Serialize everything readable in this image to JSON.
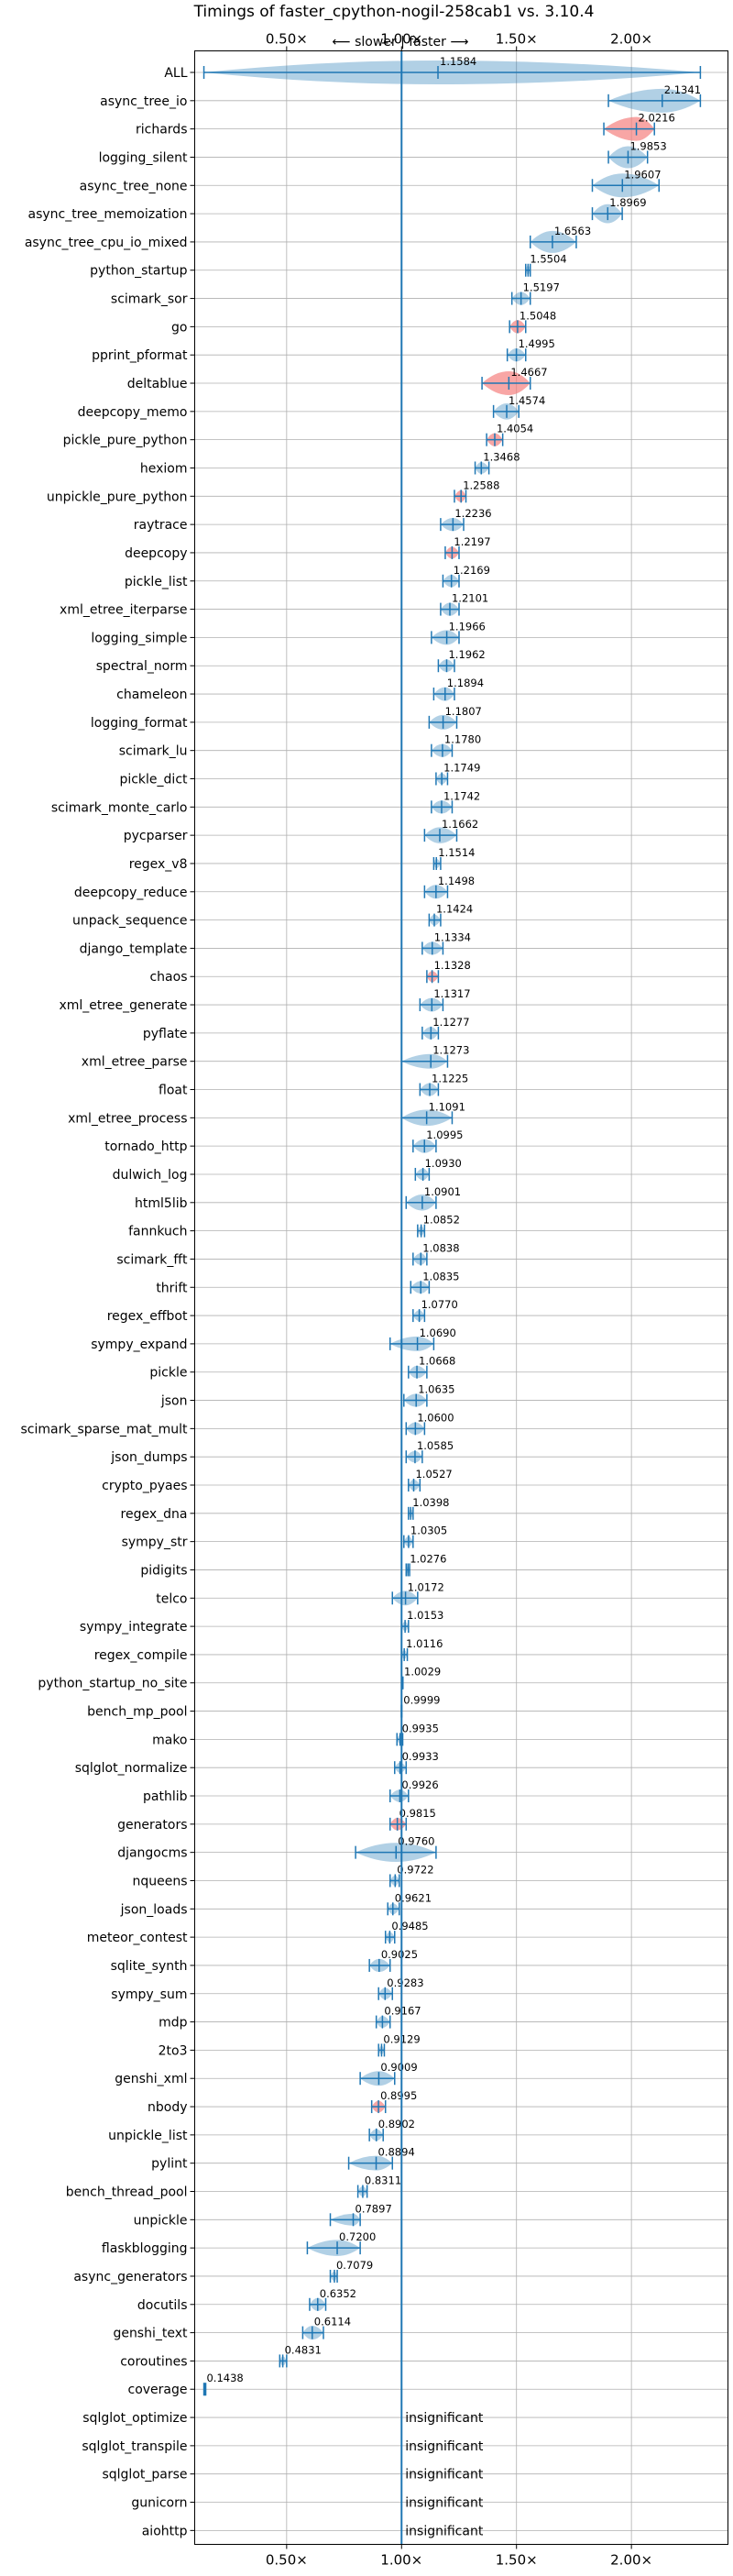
{
  "chart_data": {
    "type": "violin",
    "title": "Timings of faster_cpython-nogil-258cab1 vs. 3.10.4",
    "direction_label": "⟵ slower | faster ⟶",
    "xlim": [
      0.1,
      2.42
    ],
    "ref_line": 1.0,
    "x_ticks": [
      0.5,
      1.0,
      1.5,
      2.0
    ],
    "x_tick_labels": [
      "0.50×",
      "1.00×",
      "1.50×",
      "2.00×"
    ],
    "grid": true,
    "colors": {
      "normal": "#1f77b4",
      "flagged": "#d62728"
    },
    "insignificant_text": "insignificant",
    "benchmarks": [
      {
        "name": "ALL",
        "value": 1.1584,
        "label": "1.1584",
        "min": 0.14,
        "max": 2.3,
        "width": 0.18,
        "flag": false
      },
      {
        "name": "async_tree_io",
        "value": 2.1341,
        "label": "2.1341",
        "min": 1.9,
        "max": 2.3,
        "width": 0.2,
        "flag": false
      },
      {
        "name": "richards",
        "value": 2.0216,
        "label": "2.0216",
        "min": 1.88,
        "max": 2.1,
        "width": 0.12,
        "flag": true
      },
      {
        "name": "logging_silent",
        "value": 1.9853,
        "label": "1.9853",
        "min": 1.9,
        "max": 2.07,
        "width": 0.1,
        "flag": false
      },
      {
        "name": "async_tree_none",
        "value": 1.9607,
        "label": "1.9607",
        "min": 1.83,
        "max": 2.12,
        "width": 0.14,
        "flag": false
      },
      {
        "name": "async_tree_memoization",
        "value": 1.8969,
        "label": "1.8969",
        "min": 1.83,
        "max": 1.96,
        "width": 0.08,
        "flag": false
      },
      {
        "name": "async_tree_cpu_io_mixed",
        "value": 1.6563,
        "label": "1.6563",
        "min": 1.56,
        "max": 1.76,
        "width": 0.1,
        "flag": false
      },
      {
        "name": "python_startup",
        "value": 1.5504,
        "label": "1.5504",
        "min": 1.54,
        "max": 1.56,
        "width": 0.015,
        "flag": false
      },
      {
        "name": "scimark_sor",
        "value": 1.5197,
        "label": "1.5197",
        "min": 1.48,
        "max": 1.56,
        "width": 0.04,
        "flag": false
      },
      {
        "name": "go",
        "value": 1.5048,
        "label": "1.5048",
        "min": 1.47,
        "max": 1.54,
        "width": 0.04,
        "flag": true
      },
      {
        "name": "pprint_pformat",
        "value": 1.4995,
        "label": "1.4995",
        "min": 1.46,
        "max": 1.54,
        "width": 0.04,
        "flag": false
      },
      {
        "name": "deltablue",
        "value": 1.4667,
        "label": "1.4667",
        "min": 1.35,
        "max": 1.56,
        "width": 0.12,
        "flag": true
      },
      {
        "name": "deepcopy_memo",
        "value": 1.4574,
        "label": "1.4574",
        "min": 1.4,
        "max": 1.51,
        "width": 0.06,
        "flag": false
      },
      {
        "name": "pickle_pure_python",
        "value": 1.4054,
        "label": "1.4054",
        "min": 1.37,
        "max": 1.44,
        "width": 0.04,
        "flag": true
      },
      {
        "name": "hexiom",
        "value": 1.3468,
        "label": "1.3468",
        "min": 1.32,
        "max": 1.38,
        "width": 0.03,
        "flag": false
      },
      {
        "name": "unpickle_pure_python",
        "value": 1.2588,
        "label": "1.2588",
        "min": 1.23,
        "max": 1.28,
        "width": 0.03,
        "flag": true
      },
      {
        "name": "raytrace",
        "value": 1.2236,
        "label": "1.2236",
        "min": 1.17,
        "max": 1.27,
        "width": 0.04,
        "flag": false
      },
      {
        "name": "deepcopy",
        "value": 1.2197,
        "label": "1.2197",
        "min": 1.19,
        "max": 1.25,
        "width": 0.03,
        "flag": true
      },
      {
        "name": "pickle_list",
        "value": 1.2169,
        "label": "1.2169",
        "min": 1.18,
        "max": 1.25,
        "width": 0.035,
        "flag": false
      },
      {
        "name": "xml_etree_iterparse",
        "value": 1.2101,
        "label": "1.2101",
        "min": 1.17,
        "max": 1.25,
        "width": 0.04,
        "flag": false
      },
      {
        "name": "logging_simple",
        "value": 1.1966,
        "label": "1.1966",
        "min": 1.13,
        "max": 1.25,
        "width": 0.05,
        "flag": false
      },
      {
        "name": "spectral_norm",
        "value": 1.1962,
        "label": "1.1962",
        "min": 1.16,
        "max": 1.23,
        "width": 0.035,
        "flag": false
      },
      {
        "name": "chameleon",
        "value": 1.1894,
        "label": "1.1894",
        "min": 1.14,
        "max": 1.23,
        "width": 0.045,
        "flag": false
      },
      {
        "name": "logging_format",
        "value": 1.1807,
        "label": "1.1807",
        "min": 1.12,
        "max": 1.24,
        "width": 0.05,
        "flag": false
      },
      {
        "name": "scimark_lu",
        "value": 1.178,
        "label": "1.1780",
        "min": 1.13,
        "max": 1.22,
        "width": 0.04,
        "flag": false
      },
      {
        "name": "pickle_dict",
        "value": 1.1749,
        "label": "1.1749",
        "min": 1.15,
        "max": 1.2,
        "width": 0.025,
        "flag": false
      },
      {
        "name": "scimark_monte_carlo",
        "value": 1.1742,
        "label": "1.1742",
        "min": 1.13,
        "max": 1.22,
        "width": 0.04,
        "flag": false
      },
      {
        "name": "pycparser",
        "value": 1.1662,
        "label": "1.1662",
        "min": 1.1,
        "max": 1.24,
        "width": 0.06,
        "flag": false
      },
      {
        "name": "regex_v8",
        "value": 1.1514,
        "label": "1.1514",
        "min": 1.14,
        "max": 1.17,
        "width": 0.015,
        "flag": false
      },
      {
        "name": "deepcopy_reduce",
        "value": 1.1498,
        "label": "1.1498",
        "min": 1.1,
        "max": 1.2,
        "width": 0.045,
        "flag": false
      },
      {
        "name": "unpack_sequence",
        "value": 1.1424,
        "label": "1.1424",
        "min": 1.12,
        "max": 1.17,
        "width": 0.025,
        "flag": false
      },
      {
        "name": "django_template",
        "value": 1.1334,
        "label": "1.1334",
        "min": 1.09,
        "max": 1.18,
        "width": 0.04,
        "flag": false
      },
      {
        "name": "chaos",
        "value": 1.1328,
        "label": "1.1328",
        "min": 1.11,
        "max": 1.16,
        "width": 0.025,
        "flag": true
      },
      {
        "name": "xml_etree_generate",
        "value": 1.1317,
        "label": "1.1317",
        "min": 1.08,
        "max": 1.18,
        "width": 0.045,
        "flag": false
      },
      {
        "name": "pyflate",
        "value": 1.1277,
        "label": "1.1277",
        "min": 1.09,
        "max": 1.16,
        "width": 0.035,
        "flag": false
      },
      {
        "name": "xml_etree_parse",
        "value": 1.1273,
        "label": "1.1273",
        "min": 1.0,
        "max": 1.2,
        "width": 0.05,
        "flag": false
      },
      {
        "name": "float",
        "value": 1.1225,
        "label": "1.1225",
        "min": 1.08,
        "max": 1.16,
        "width": 0.04,
        "flag": false
      },
      {
        "name": "xml_etree_process",
        "value": 1.1091,
        "label": "1.1091",
        "min": 1.0,
        "max": 1.22,
        "width": 0.06,
        "flag": false
      },
      {
        "name": "tornado_http",
        "value": 1.0995,
        "label": "1.0995",
        "min": 1.05,
        "max": 1.15,
        "width": 0.045,
        "flag": false
      },
      {
        "name": "dulwich_log",
        "value": 1.093,
        "label": "1.0930",
        "min": 1.06,
        "max": 1.12,
        "width": 0.03,
        "flag": false
      },
      {
        "name": "html5lib",
        "value": 1.0901,
        "label": "1.0901",
        "min": 1.02,
        "max": 1.15,
        "width": 0.06,
        "flag": false
      },
      {
        "name": "fannkuch",
        "value": 1.0852,
        "label": "1.0852",
        "min": 1.07,
        "max": 1.1,
        "width": 0.015,
        "flag": false
      },
      {
        "name": "scimark_fft",
        "value": 1.0838,
        "label": "1.0838",
        "min": 1.05,
        "max": 1.11,
        "width": 0.03,
        "flag": false
      },
      {
        "name": "thrift",
        "value": 1.0835,
        "label": "1.0835",
        "min": 1.04,
        "max": 1.12,
        "width": 0.035,
        "flag": false
      },
      {
        "name": "regex_effbot",
        "value": 1.077,
        "label": "1.0770",
        "min": 1.05,
        "max": 1.1,
        "width": 0.025,
        "flag": false
      },
      {
        "name": "sympy_expand",
        "value": 1.069,
        "label": "1.0690",
        "min": 0.95,
        "max": 1.14,
        "width": 0.05,
        "flag": false
      },
      {
        "name": "pickle",
        "value": 1.0668,
        "label": "1.0668",
        "min": 1.03,
        "max": 1.11,
        "width": 0.035,
        "flag": false
      },
      {
        "name": "json",
        "value": 1.0635,
        "label": "1.0635",
        "min": 1.01,
        "max": 1.11,
        "width": 0.04,
        "flag": false
      },
      {
        "name": "scimark_sparse_mat_mult",
        "value": 1.06,
        "label": "1.0600",
        "min": 1.02,
        "max": 1.1,
        "width": 0.035,
        "flag": false
      },
      {
        "name": "json_dumps",
        "value": 1.0585,
        "label": "1.0585",
        "min": 1.02,
        "max": 1.09,
        "width": 0.03,
        "flag": false
      },
      {
        "name": "crypto_pyaes",
        "value": 1.0527,
        "label": "1.0527",
        "min": 1.03,
        "max": 1.08,
        "width": 0.025,
        "flag": false
      },
      {
        "name": "regex_dna",
        "value": 1.0398,
        "label": "1.0398",
        "min": 1.03,
        "max": 1.05,
        "width": 0.012,
        "flag": false
      },
      {
        "name": "sympy_str",
        "value": 1.0305,
        "label": "1.0305",
        "min": 1.01,
        "max": 1.05,
        "width": 0.02,
        "flag": false
      },
      {
        "name": "pidigits",
        "value": 1.0276,
        "label": "1.0276",
        "min": 1.02,
        "max": 1.035,
        "width": 0.008,
        "flag": false
      },
      {
        "name": "telco",
        "value": 1.0172,
        "label": "1.0172",
        "min": 0.96,
        "max": 1.07,
        "width": 0.05,
        "flag": false
      },
      {
        "name": "sympy_integrate",
        "value": 1.0153,
        "label": "1.0153",
        "min": 1.0,
        "max": 1.03,
        "width": 0.015,
        "flag": false
      },
      {
        "name": "regex_compile",
        "value": 1.0116,
        "label": "1.0116",
        "min": 1.0,
        "max": 1.025,
        "width": 0.012,
        "flag": false
      },
      {
        "name": "python_startup_no_site",
        "value": 1.0029,
        "label": "1.0029",
        "min": 1.0,
        "max": 1.006,
        "width": 0.004,
        "flag": false
      },
      {
        "name": "bench_mp_pool",
        "value": 0.9999,
        "label": "0.9999",
        "min": 0.999,
        "max": 1.001,
        "width": 0.002,
        "flag": false
      },
      {
        "name": "mako",
        "value": 0.9935,
        "label": "0.9935",
        "min": 0.98,
        "max": 1.005,
        "width": 0.012,
        "flag": false
      },
      {
        "name": "sqlglot_normalize",
        "value": 0.9933,
        "label": "0.9933",
        "min": 0.97,
        "max": 1.02,
        "width": 0.02,
        "flag": false
      },
      {
        "name": "pathlib",
        "value": 0.9926,
        "label": "0.9926",
        "min": 0.95,
        "max": 1.03,
        "width": 0.035,
        "flag": false
      },
      {
        "name": "generators",
        "value": 0.9815,
        "label": "0.9815",
        "min": 0.95,
        "max": 1.02,
        "width": 0.035,
        "flag": true
      },
      {
        "name": "djangocms",
        "value": 0.976,
        "label": "0.9760",
        "min": 0.8,
        "max": 1.15,
        "width": 0.08,
        "flag": false
      },
      {
        "name": "nqueens",
        "value": 0.9722,
        "label": "0.9722",
        "min": 0.95,
        "max": 0.99,
        "width": 0.02,
        "flag": false
      },
      {
        "name": "json_loads",
        "value": 0.9621,
        "label": "0.9621",
        "min": 0.94,
        "max": 0.99,
        "width": 0.025,
        "flag": false
      },
      {
        "name": "meteor_contest",
        "value": 0.9485,
        "label": "0.9485",
        "min": 0.93,
        "max": 0.97,
        "width": 0.02,
        "flag": false
      },
      {
        "name": "sqlite_synth",
        "value": 0.9025,
        "label": "0.9025",
        "min": 0.86,
        "max": 0.95,
        "width": 0.04,
        "flag": false
      },
      {
        "name": "sympy_sum",
        "value": 0.9283,
        "label": "0.9283",
        "min": 0.9,
        "max": 0.96,
        "width": 0.03,
        "flag": false
      },
      {
        "name": "mdp",
        "value": 0.9167,
        "label": "0.9167",
        "min": 0.89,
        "max": 0.95,
        "width": 0.03,
        "flag": false
      },
      {
        "name": "2to3",
        "value": 0.9129,
        "label": "0.9129",
        "min": 0.9,
        "max": 0.925,
        "width": 0.01,
        "flag": false
      },
      {
        "name": "genshi_xml",
        "value": 0.9009,
        "label": "0.9009",
        "min": 0.82,
        "max": 0.97,
        "width": 0.05,
        "flag": false
      },
      {
        "name": "nbody",
        "value": 0.8995,
        "label": "0.8995",
        "min": 0.87,
        "max": 0.93,
        "width": 0.03,
        "flag": true
      },
      {
        "name": "unpickle_list",
        "value": 0.8902,
        "label": "0.8902",
        "min": 0.86,
        "max": 0.92,
        "width": 0.03,
        "flag": false
      },
      {
        "name": "pylint",
        "value": 0.8894,
        "label": "0.8894",
        "min": 0.77,
        "max": 0.96,
        "width": 0.05,
        "flag": false
      },
      {
        "name": "bench_thread_pool",
        "value": 0.8311,
        "label": "0.8311",
        "min": 0.81,
        "max": 0.85,
        "width": 0.02,
        "flag": false
      },
      {
        "name": "unpickle",
        "value": 0.7897,
        "label": "0.7897",
        "min": 0.69,
        "max": 0.82,
        "width": 0.03,
        "flag": false
      },
      {
        "name": "flaskblogging",
        "value": 0.72,
        "label": "0.7200",
        "min": 0.59,
        "max": 0.82,
        "width": 0.06,
        "flag": false
      },
      {
        "name": "async_generators",
        "value": 0.7079,
        "label": "0.7079",
        "min": 0.69,
        "max": 0.72,
        "width": 0.015,
        "flag": false
      },
      {
        "name": "docutils",
        "value": 0.6352,
        "label": "0.6352",
        "min": 0.6,
        "max": 0.67,
        "width": 0.04,
        "flag": false
      },
      {
        "name": "genshi_text",
        "value": 0.6114,
        "label": "0.6114",
        "min": 0.57,
        "max": 0.66,
        "width": 0.045,
        "flag": false
      },
      {
        "name": "coroutines",
        "value": 0.4831,
        "label": "0.4831",
        "min": 0.47,
        "max": 0.5,
        "width": 0.015,
        "flag": false
      },
      {
        "name": "coverage",
        "value": 0.1438,
        "label": "0.1438",
        "min": 0.14,
        "max": 0.148,
        "width": 0.004,
        "flag": false
      },
      {
        "name": "sqlglot_optimize",
        "insignificant": true
      },
      {
        "name": "sqlglot_transpile",
        "insignificant": true
      },
      {
        "name": "sqlglot_parse",
        "insignificant": true
      },
      {
        "name": "gunicorn",
        "insignificant": true
      },
      {
        "name": "aiohttp",
        "insignificant": true
      }
    ]
  }
}
